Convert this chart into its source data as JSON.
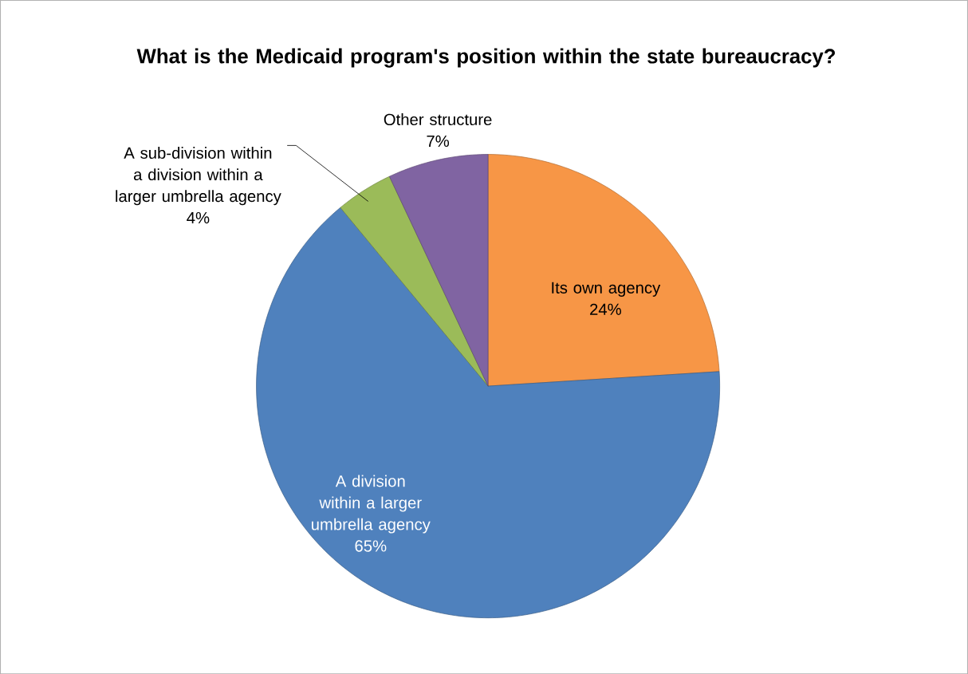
{
  "chart_data": {
    "type": "pie",
    "title": "What is the Medicaid program's position within the state bureaucracy?",
    "categories": [
      "Its own agency",
      "A division within a larger umbrella agency",
      "A sub-division within a division within a larger umbrella agency",
      "Other structure"
    ],
    "values": [
      24,
      65,
      4,
      7
    ],
    "colors": [
      "#f79646",
      "#4f81bd",
      "#9bbb59",
      "#8064a2"
    ],
    "value_labels": [
      "24%",
      "65%",
      "4%",
      "7%"
    ]
  }
}
